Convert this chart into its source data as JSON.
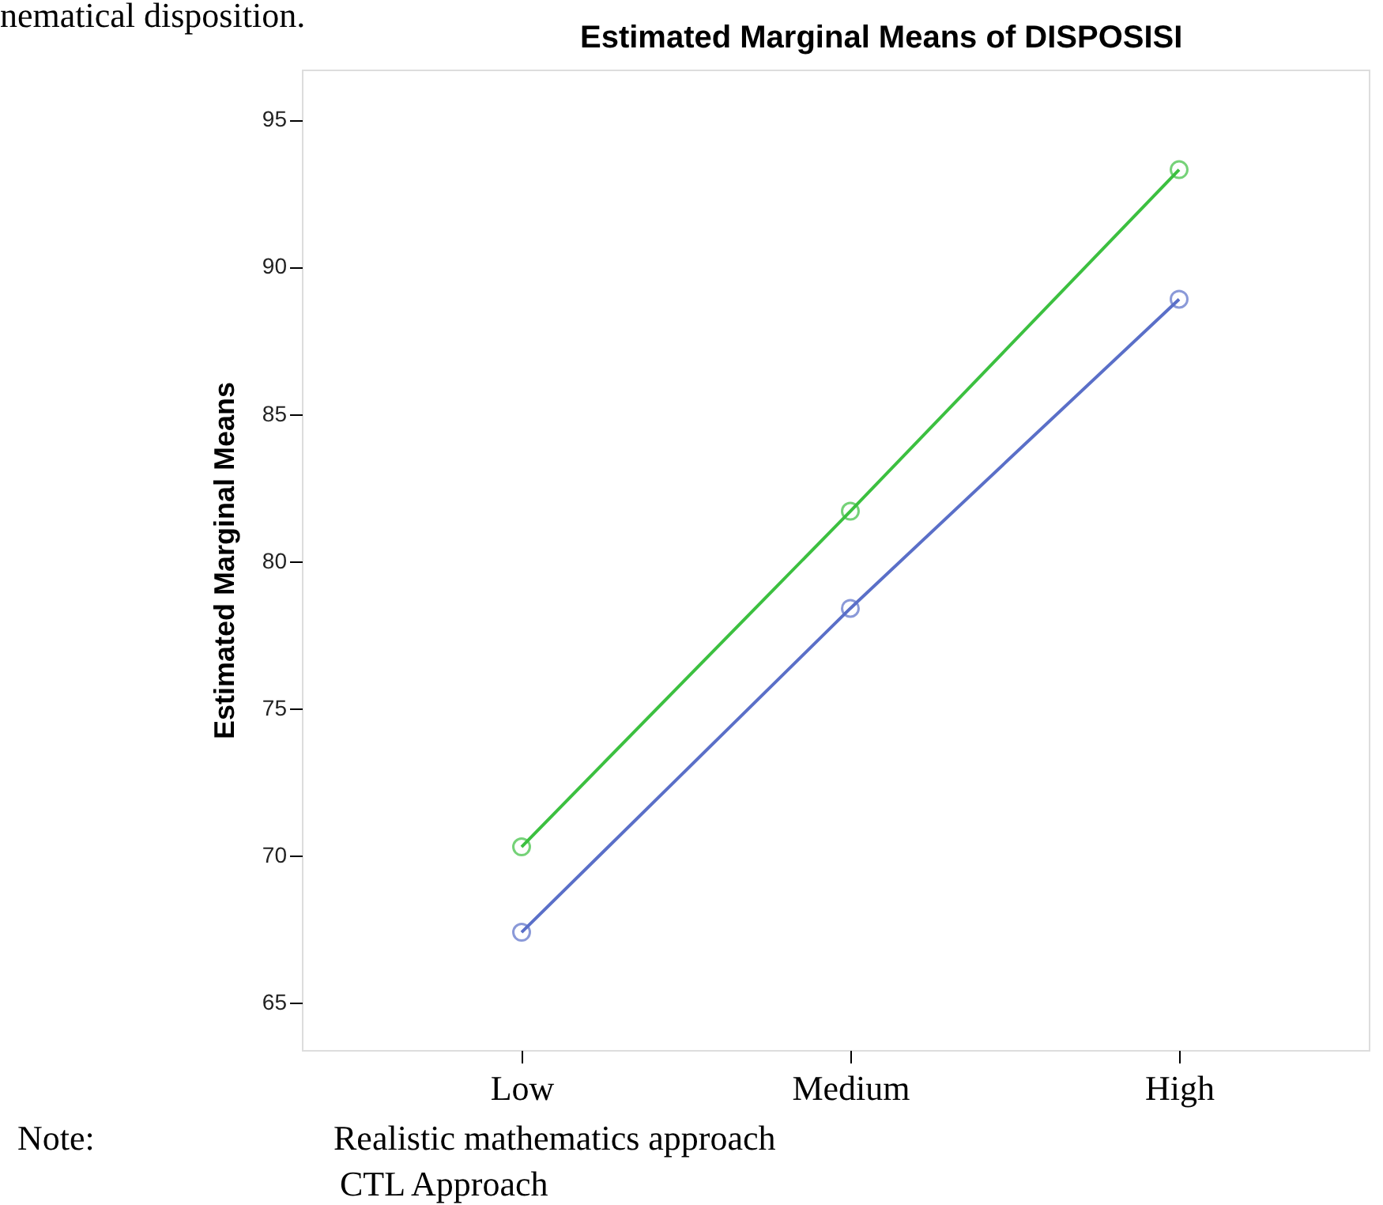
{
  "chart_data": {
    "type": "line",
    "title": "Estimated Marginal Means of DISPOSISI",
    "ylabel": "Estimated Marginal Means",
    "categories": [
      "Low",
      "Medium",
      "High"
    ],
    "series": [
      {
        "color": "#3cc040",
        "values": [
          70.3,
          81.7,
          93.3
        ]
      },
      {
        "color": "#5a6fc8",
        "values": [
          67.4,
          78.4,
          88.9
        ]
      }
    ],
    "ylim": [
      63.4,
      96.7
    ],
    "yticks": [
      65,
      70,
      75,
      80,
      85,
      90,
      95
    ],
    "grid": false,
    "legend": false,
    "marker": "circle",
    "line_style": "solid",
    "annotations": [
      "nematical disposition.",
      "Note:",
      "Realistic mathematics approach",
      "CTL Approach"
    ]
  }
}
